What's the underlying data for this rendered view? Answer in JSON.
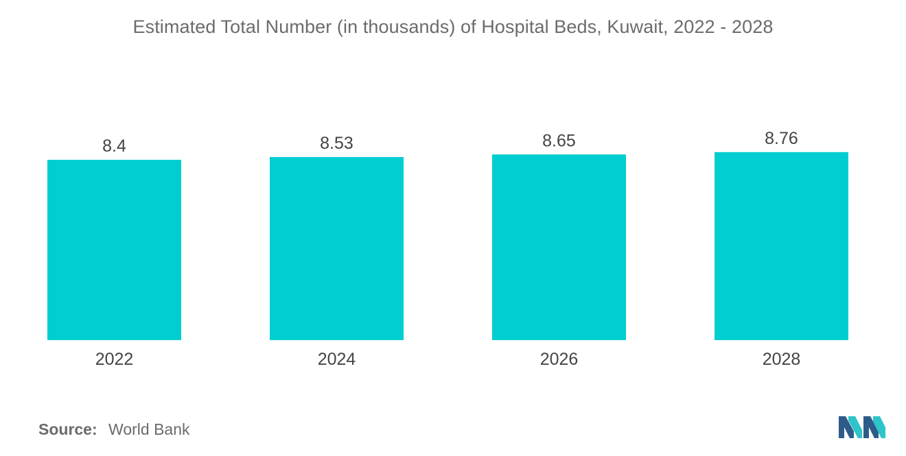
{
  "title": "Estimated Total Number (in thousands) of Hospital Beds, Kuwait, 2022 - 2028",
  "source": {
    "label": "Source:",
    "value": "World Bank"
  },
  "colors": {
    "bar": "#00CED1",
    "text": "#444444",
    "title": "#6b6b6b",
    "logo_dark": "#2E5C8A",
    "logo_light": "#2EC4C9"
  },
  "logo_icon": "mordor-intelligence-logo",
  "chart_data": {
    "type": "bar",
    "categories": [
      "2022",
      "2024",
      "2026",
      "2028"
    ],
    "values": [
      8.4,
      8.53,
      8.65,
      8.76
    ],
    "data_labels": [
      "8.4",
      "8.53",
      "8.65",
      "8.76"
    ],
    "title": "Estimated Total Number (in thousands) of Hospital Beds, Kuwait, 2022 - 2028",
    "xlabel": "",
    "ylabel": "",
    "grid": false,
    "legend": "none"
  }
}
